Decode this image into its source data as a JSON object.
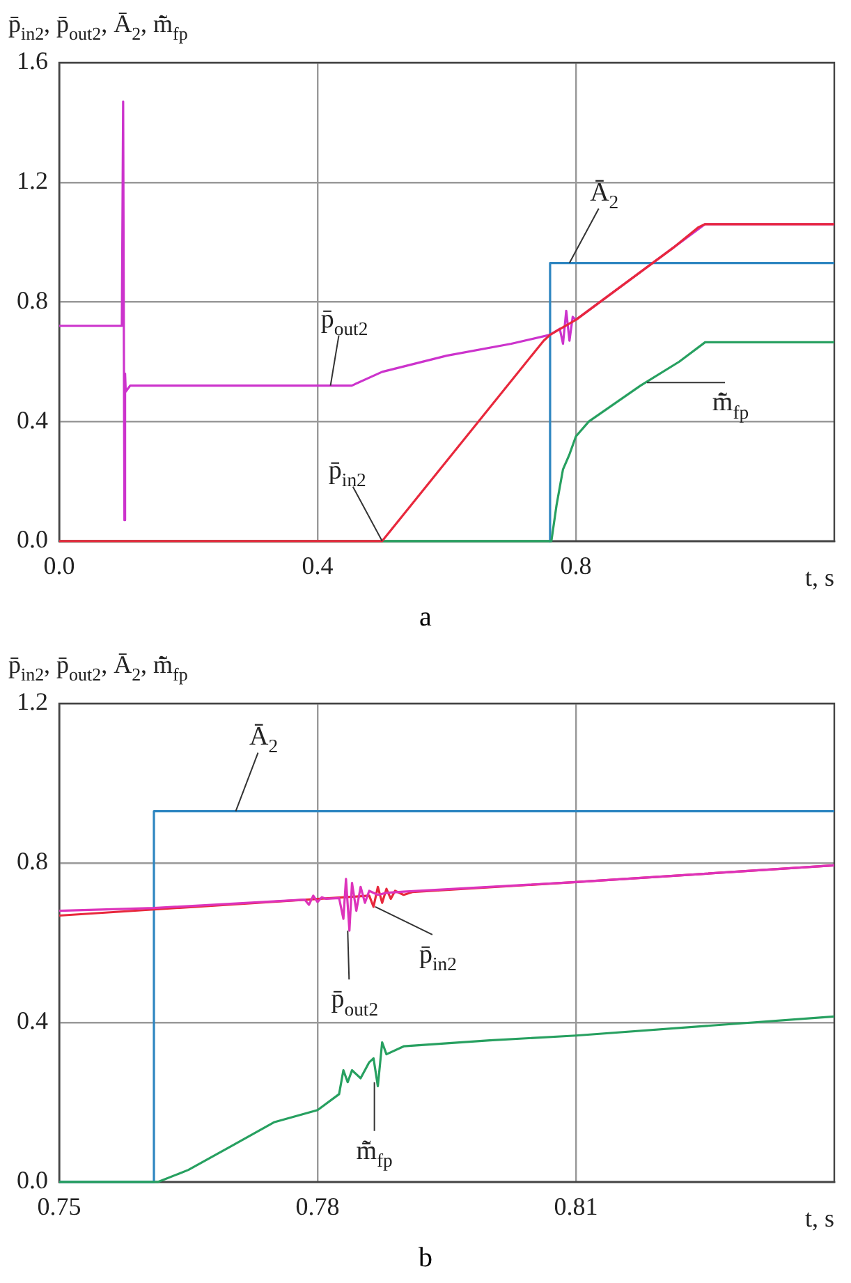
{
  "chart_data": [
    {
      "type": "line",
      "ylabel": "p̄$_{in2}$, p̄$_{out2}$, Ā$_{2}$, m̃̄$_{fp}$",
      "xlabel": "t, s",
      "grid": true,
      "legend": false,
      "marker": "none",
      "xlim": [
        0,
        1.2
      ],
      "xticks": [
        {
          "value": 0,
          "label": "0.0"
        },
        0.4,
        0.8
      ],
      "ylim": [
        0,
        1.6
      ],
      "yticks": [
        {
          "value": 0,
          "label": "0.0"
        },
        0.4,
        0.8,
        1.2,
        1.6
      ],
      "series": [
        {
          "color": "#2e86c1",
          "x": [
            0.758,
            0.76,
            1.2
          ],
          "values": [
            0,
            0.93,
            0.93
          ]
        },
        {
          "color": "#27a060",
          "x": [
            0,
            0.762,
            0.77,
            0.78,
            0.79,
            0.8,
            0.82,
            0.86,
            0.9,
            0.96,
            1.0,
            1.2
          ],
          "values": [
            0,
            0,
            0.12,
            0.24,
            0.29,
            0.35,
            0.4,
            0.46,
            0.52,
            0.6,
            0.665,
            0.665
          ]
        },
        {
          "color": "#cc33cc",
          "x": [
            0,
            0.097,
            0.099,
            0.101,
            0.102,
            0.103,
            0.11,
            0.2,
            0.3,
            0.4,
            0.453,
            0.5,
            0.6,
            0.7,
            0.76,
            0.775,
            0.78,
            0.785,
            0.79,
            0.795,
            0.8,
            0.9,
            0.95,
            1.0,
            1.2
          ],
          "values": [
            0.72,
            0.72,
            1.47,
            0.07,
            0.56,
            0.5,
            0.52,
            0.52,
            0.52,
            0.52,
            0.52,
            0.566,
            0.62,
            0.66,
            0.69,
            0.71,
            0.66,
            0.77,
            0.67,
            0.75,
            0.74,
            0.9,
            0.98,
            1.06,
            1.06
          ]
        },
        {
          "color": "#e8283c",
          "x": [
            0,
            0.5,
            0.75,
            0.76,
            0.8,
            0.95,
            0.99,
            1.0,
            1.2
          ],
          "values": [
            0,
            0,
            0.67,
            0.69,
            0.74,
            0.98,
            1.05,
            1.06,
            1.06
          ]
        }
      ],
      "annotations": [
        {
          "text": "p̄$_{out2}$",
          "x": 0.42,
          "y": 0.52
        },
        {
          "text": "p̄$_{in2}$",
          "x": 0.5,
          "y": 0
        },
        {
          "text": "Ā$_{2}$",
          "x": 0.79,
          "y": 0.93
        },
        {
          "text": "m̃̄$_{fp}$",
          "x": 0.91,
          "y": 0.53
        },
        "a"
      ]
    },
    {
      "type": "line",
      "ylabel": "p̄$_{in2}$, p̄$_{out2}$, Ā$_{2}$, m̃̄$_{fp}$",
      "xlabel": "t, s",
      "grid": true,
      "legend": false,
      "marker": "none",
      "xlim": [
        0.75,
        0.84
      ],
      "xticks": [
        0.75,
        0.78,
        0.81
      ],
      "ylim": [
        0,
        1.2
      ],
      "yticks": [
        {
          "value": 0,
          "label": "0.0"
        },
        0.4,
        0.8,
        1.2
      ],
      "series": [
        {
          "color": "#2e86c1",
          "x": [
            0.75,
            0.761,
            0.761,
            0.84
          ],
          "values": [
            0,
            0,
            0.93,
            0.93
          ]
        },
        {
          "color": "#27a060",
          "x": [
            0.75,
            0.7615,
            0.765,
            0.77,
            0.775,
            0.78,
            0.7825,
            0.783,
            0.7835,
            0.784,
            0.785,
            0.786,
            0.7865,
            0.787,
            0.7875,
            0.788,
            0.79,
            0.8,
            0.81,
            0.84
          ],
          "values": [
            0,
            0,
            0.03,
            0.09,
            0.15,
            0.18,
            0.22,
            0.28,
            0.25,
            0.28,
            0.26,
            0.3,
            0.31,
            0.24,
            0.35,
            0.32,
            0.34,
            0.355,
            0.367,
            0.415
          ]
        },
        {
          "color": "#e8283c",
          "x": [
            0.75,
            0.786,
            0.7865,
            0.787,
            0.7875,
            0.788,
            0.7885,
            0.789,
            0.79,
            0.791,
            0.81,
            0.84
          ],
          "values": [
            0.668,
            0.718,
            0.69,
            0.74,
            0.7,
            0.735,
            0.71,
            0.73,
            0.72,
            0.727,
            0.752,
            0.794
          ]
        },
        {
          "color": "#dd33bb",
          "x": [
            0.75,
            0.761,
            0.7785,
            0.779,
            0.7795,
            0.78,
            0.7805,
            0.781,
            0.7825,
            0.783,
            0.7833,
            0.7837,
            0.784,
            0.7845,
            0.785,
            0.7855,
            0.786,
            0.787,
            0.788,
            0.79,
            0.81,
            0.84
          ],
          "values": [
            0.68,
            0.687,
            0.708,
            0.695,
            0.718,
            0.702,
            0.714,
            0.71,
            0.712,
            0.66,
            0.76,
            0.63,
            0.75,
            0.68,
            0.74,
            0.7,
            0.73,
            0.72,
            0.725,
            0.728,
            0.752,
            0.794
          ]
        }
      ],
      "annotations": [
        {
          "text": "Ā$_{2}$",
          "x": 0.7705,
          "y": 0.93
        },
        {
          "text": "p̄$_{out2}$",
          "x": 0.7835,
          "y": 0.63
        },
        {
          "text": "p̄$_{in2}$",
          "x": 0.7867,
          "y": 0.69
        },
        {
          "text": "m̃̄$_{fp}$",
          "x": 0.7866,
          "y": 0.25
        },
        "b"
      ]
    }
  ]
}
